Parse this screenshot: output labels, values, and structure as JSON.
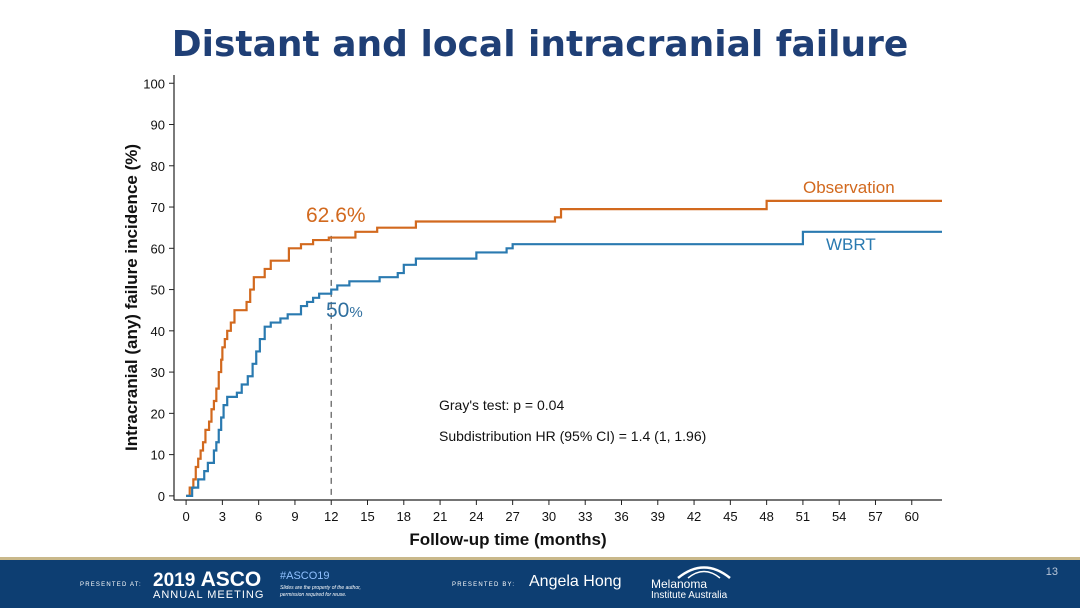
{
  "slide": {
    "title": "Distant and local intracranial failure",
    "number": "13"
  },
  "footer": {
    "presented_at": "PRESENTED AT:",
    "meeting_year": "2019",
    "meeting_brand": "ASCO",
    "meeting_sub": "ANNUAL MEETING",
    "hashtag": "#ASCO19",
    "disclaimer_1": "Slides are the property of the author,",
    "disclaimer_2": "permission required for reuse.",
    "presented_by": "PRESENTED BY:",
    "presenter": "Angela Hong",
    "institute_1": "Melanoma",
    "institute_2": "Institute Australia"
  },
  "chart_data": {
    "type": "line",
    "step": true,
    "xlabel": "Follow-up time (months)",
    "ylabel": "Intracranial (any) failure incidence (%)",
    "xlim": [
      -1,
      62.5
    ],
    "ylim": [
      -1,
      102
    ],
    "x_ticks": [
      0,
      3,
      6,
      9,
      12,
      15,
      18,
      21,
      24,
      27,
      30,
      33,
      36,
      39,
      42,
      45,
      48,
      51,
      54,
      57,
      60
    ],
    "y_ticks": [
      0,
      10,
      20,
      30,
      40,
      50,
      60,
      70,
      80,
      90,
      100
    ],
    "grid": false,
    "series": [
      {
        "name": "Observation",
        "color": "#d2691e",
        "points": [
          [
            0,
            0
          ],
          [
            0.3,
            2
          ],
          [
            0.6,
            4
          ],
          [
            0.8,
            7
          ],
          [
            1.0,
            9
          ],
          [
            1.2,
            11
          ],
          [
            1.4,
            13
          ],
          [
            1.6,
            16
          ],
          [
            1.9,
            18
          ],
          [
            2.1,
            21
          ],
          [
            2.3,
            23
          ],
          [
            2.5,
            26
          ],
          [
            2.7,
            30
          ],
          [
            2.9,
            33
          ],
          [
            3.0,
            36
          ],
          [
            3.2,
            38
          ],
          [
            3.4,
            40
          ],
          [
            3.7,
            42
          ],
          [
            4.0,
            45
          ],
          [
            5.0,
            47
          ],
          [
            5.3,
            50
          ],
          [
            5.6,
            53
          ],
          [
            6.5,
            55
          ],
          [
            7.0,
            57
          ],
          [
            8.5,
            60
          ],
          [
            9.5,
            61
          ],
          [
            10.5,
            62
          ],
          [
            11.8,
            62.6
          ],
          [
            14.0,
            64
          ],
          [
            15.8,
            65
          ],
          [
            19.0,
            66.5
          ],
          [
            30.5,
            67.5
          ],
          [
            31.0,
            69.5
          ],
          [
            48.0,
            71.5
          ],
          [
            62.5,
            71.5
          ]
        ]
      },
      {
        "name": "WBRT",
        "color": "#2a7ab0",
        "points": [
          [
            0,
            0
          ],
          [
            0.5,
            2
          ],
          [
            1.0,
            4
          ],
          [
            1.5,
            6
          ],
          [
            1.8,
            8
          ],
          [
            2.3,
            11
          ],
          [
            2.5,
            13
          ],
          [
            2.7,
            16
          ],
          [
            2.9,
            19
          ],
          [
            3.1,
            22
          ],
          [
            3.4,
            24
          ],
          [
            4.2,
            25
          ],
          [
            4.6,
            27
          ],
          [
            5.1,
            29
          ],
          [
            5.5,
            32
          ],
          [
            5.8,
            35
          ],
          [
            6.1,
            38
          ],
          [
            6.5,
            41
          ],
          [
            7.0,
            42
          ],
          [
            7.8,
            43
          ],
          [
            8.4,
            44
          ],
          [
            9.5,
            46
          ],
          [
            10.0,
            47
          ],
          [
            10.5,
            48
          ],
          [
            11.0,
            49
          ],
          [
            12.0,
            50
          ],
          [
            12.5,
            51
          ],
          [
            13.5,
            52
          ],
          [
            16.0,
            53
          ],
          [
            17.5,
            54
          ],
          [
            18.0,
            56
          ],
          [
            19.0,
            57.5
          ],
          [
            24.0,
            59
          ],
          [
            26.5,
            60
          ],
          [
            27.0,
            61
          ],
          [
            51.0,
            64
          ],
          [
            62.5,
            64
          ]
        ]
      }
    ],
    "annotations": [
      {
        "text": "62.6%",
        "x": 12,
        "y": 62.6,
        "series": "Observation"
      },
      {
        "text": "50",
        "suffix": "%",
        "x": 12,
        "y": 50,
        "series": "WBRT"
      },
      {
        "text": "Gray's test: p = 0.04"
      },
      {
        "text": "Subdistribution HR (95% CI) = 1.4 (1, 1.96)"
      }
    ],
    "reference_line": {
      "x": 12,
      "style": "dashed"
    }
  }
}
